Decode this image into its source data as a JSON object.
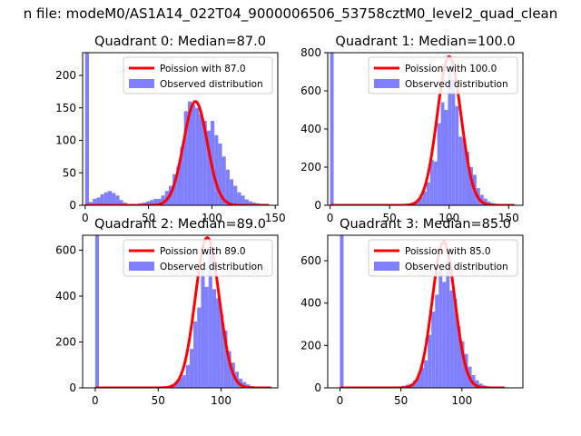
{
  "page_title": "n file: modeM0/AS1A14_022T04_9000006506_53758cztM0_level2_quad_clean",
  "colors": {
    "poisson": "#ff0000",
    "hist": "#8080ff",
    "axis": "#000000"
  },
  "chart_data": [
    {
      "type": "bar",
      "title": "Quadrant 0: Median=87.0",
      "xlim": [
        -2,
        152
      ],
      "ylim": [
        0,
        235
      ],
      "xticks": [
        0,
        50,
        100,
        150
      ],
      "yticks": [
        0,
        50,
        100,
        150,
        200
      ],
      "legend": [
        "Poission with 87.0",
        "Observed distribution"
      ],
      "legend_position": "top-right",
      "bins": [
        {
          "x": 0,
          "w": 3,
          "v": 235
        },
        {
          "x": 3,
          "w": 3,
          "v": 5
        },
        {
          "x": 6,
          "w": 3,
          "v": 10
        },
        {
          "x": 9,
          "w": 3,
          "v": 12
        },
        {
          "x": 12,
          "w": 3,
          "v": 17
        },
        {
          "x": 15,
          "w": 3,
          "v": 20
        },
        {
          "x": 18,
          "w": 3,
          "v": 22
        },
        {
          "x": 21,
          "w": 3,
          "v": 19
        },
        {
          "x": 24,
          "w": 3,
          "v": 15
        },
        {
          "x": 27,
          "w": 3,
          "v": 8
        },
        {
          "x": 30,
          "w": 3,
          "v": 4
        },
        {
          "x": 33,
          "w": 3,
          "v": 2
        },
        {
          "x": 36,
          "w": 3,
          "v": 2
        },
        {
          "x": 39,
          "w": 3,
          "v": 2
        },
        {
          "x": 42,
          "w": 3,
          "v": 3
        },
        {
          "x": 45,
          "w": 3,
          "v": 4
        },
        {
          "x": 48,
          "w": 3,
          "v": 6
        },
        {
          "x": 51,
          "w": 3,
          "v": 8
        },
        {
          "x": 54,
          "w": 3,
          "v": 10
        },
        {
          "x": 57,
          "w": 3,
          "v": 10
        },
        {
          "x": 60,
          "w": 3,
          "v": 15
        },
        {
          "x": 63,
          "w": 3,
          "v": 22
        },
        {
          "x": 66,
          "w": 3,
          "v": 30
        },
        {
          "x": 69,
          "w": 3,
          "v": 48
        },
        {
          "x": 72,
          "w": 3,
          "v": 60
        },
        {
          "x": 75,
          "w": 3,
          "v": 90
        },
        {
          "x": 78,
          "w": 3,
          "v": 145
        },
        {
          "x": 81,
          "w": 3,
          "v": 160
        },
        {
          "x": 84,
          "w": 3,
          "v": 155
        },
        {
          "x": 87,
          "w": 3,
          "v": 150
        },
        {
          "x": 90,
          "w": 3,
          "v": 140
        },
        {
          "x": 93,
          "w": 3,
          "v": 130
        },
        {
          "x": 96,
          "w": 3,
          "v": 115
        },
        {
          "x": 99,
          "w": 3,
          "v": 130
        },
        {
          "x": 102,
          "w": 3,
          "v": 108
        },
        {
          "x": 105,
          "w": 3,
          "v": 95
        },
        {
          "x": 108,
          "w": 3,
          "v": 75
        },
        {
          "x": 111,
          "w": 3,
          "v": 55
        },
        {
          "x": 114,
          "w": 3,
          "v": 40
        },
        {
          "x": 117,
          "w": 3,
          "v": 30
        },
        {
          "x": 120,
          "w": 3,
          "v": 20
        },
        {
          "x": 123,
          "w": 3,
          "v": 15
        },
        {
          "x": 126,
          "w": 3,
          "v": 9
        },
        {
          "x": 129,
          "w": 3,
          "v": 6
        },
        {
          "x": 132,
          "w": 3,
          "v": 4
        },
        {
          "x": 135,
          "w": 3,
          "v": 3
        },
        {
          "x": 138,
          "w": 3,
          "v": 2
        },
        {
          "x": 141,
          "w": 3,
          "v": 2
        }
      ],
      "poisson": {
        "lambda": 87.0,
        "peak": 160,
        "x_range": [
          0,
          145
        ]
      }
    },
    {
      "type": "bar",
      "title": "Quadrant 1: Median=100.0",
      "xlim": [
        -2,
        162
      ],
      "ylim": [
        0,
        800
      ],
      "xticks": [
        0,
        50,
        100,
        150
      ],
      "yticks": [
        0,
        200,
        400,
        600,
        800
      ],
      "legend": [
        "Poission with 100.0",
        "Observed distribution"
      ],
      "legend_position": "top-right",
      "bins": [
        {
          "x": 0,
          "w": 3,
          "v": 800
        },
        {
          "x": 54,
          "w": 3,
          "v": 2
        },
        {
          "x": 57,
          "w": 3,
          "v": 2
        },
        {
          "x": 60,
          "w": 3,
          "v": 3
        },
        {
          "x": 63,
          "w": 3,
          "v": 5
        },
        {
          "x": 66,
          "w": 3,
          "v": 8
        },
        {
          "x": 69,
          "w": 3,
          "v": 15
        },
        {
          "x": 72,
          "w": 3,
          "v": 25
        },
        {
          "x": 75,
          "w": 3,
          "v": 45
        },
        {
          "x": 78,
          "w": 3,
          "v": 75
        },
        {
          "x": 81,
          "w": 3,
          "v": 120
        },
        {
          "x": 84,
          "w": 3,
          "v": 240
        },
        {
          "x": 87,
          "w": 3,
          "v": 230
        },
        {
          "x": 90,
          "w": 3,
          "v": 430
        },
        {
          "x": 93,
          "w": 3,
          "v": 540
        },
        {
          "x": 96,
          "w": 3,
          "v": 500
        },
        {
          "x": 99,
          "w": 3,
          "v": 700
        },
        {
          "x": 102,
          "w": 3,
          "v": 660
        },
        {
          "x": 105,
          "w": 3,
          "v": 520
        },
        {
          "x": 108,
          "w": 3,
          "v": 360
        },
        {
          "x": 111,
          "w": 3,
          "v": 350
        },
        {
          "x": 114,
          "w": 3,
          "v": 280
        },
        {
          "x": 117,
          "w": 3,
          "v": 200
        },
        {
          "x": 120,
          "w": 3,
          "v": 160
        },
        {
          "x": 123,
          "w": 3,
          "v": 90
        },
        {
          "x": 126,
          "w": 3,
          "v": 55
        },
        {
          "x": 129,
          "w": 3,
          "v": 35
        },
        {
          "x": 132,
          "w": 3,
          "v": 20
        },
        {
          "x": 135,
          "w": 3,
          "v": 12
        },
        {
          "x": 138,
          "w": 3,
          "v": 8
        },
        {
          "x": 141,
          "w": 3,
          "v": 5
        }
      ],
      "poisson": {
        "lambda": 100.0,
        "peak": 780,
        "x_range": [
          0,
          155
        ]
      }
    },
    {
      "type": "bar",
      "title": "Quadrant 2: Median=89.0",
      "xlim": [
        -10,
        145
      ],
      "ylim": [
        0,
        665
      ],
      "xticks": [
        0,
        50,
        100
      ],
      "yticks": [
        0,
        200,
        400,
        600
      ],
      "legend": [
        "Poission with 89.0",
        "Observed distribution"
      ],
      "legend_position": "top-right",
      "bins": [
        {
          "x": 0,
          "w": 3,
          "v": 665
        },
        {
          "x": 45,
          "w": 3,
          "v": 2
        },
        {
          "x": 48,
          "w": 3,
          "v": 3
        },
        {
          "x": 51,
          "w": 3,
          "v": 4
        },
        {
          "x": 54,
          "w": 3,
          "v": 5
        },
        {
          "x": 57,
          "w": 3,
          "v": 8
        },
        {
          "x": 60,
          "w": 3,
          "v": 15
        },
        {
          "x": 63,
          "w": 3,
          "v": 25
        },
        {
          "x": 66,
          "w": 3,
          "v": 45
        },
        {
          "x": 69,
          "w": 3,
          "v": 55
        },
        {
          "x": 72,
          "w": 3,
          "v": 100
        },
        {
          "x": 75,
          "w": 3,
          "v": 170
        },
        {
          "x": 78,
          "w": 3,
          "v": 290
        },
        {
          "x": 81,
          "w": 3,
          "v": 350
        },
        {
          "x": 84,
          "w": 3,
          "v": 520
        },
        {
          "x": 87,
          "w": 3,
          "v": 440
        },
        {
          "x": 90,
          "w": 3,
          "v": 600
        },
        {
          "x": 93,
          "w": 3,
          "v": 430
        },
        {
          "x": 96,
          "w": 3,
          "v": 390
        },
        {
          "x": 99,
          "w": 3,
          "v": 320
        },
        {
          "x": 102,
          "w": 3,
          "v": 250
        },
        {
          "x": 105,
          "w": 3,
          "v": 160
        },
        {
          "x": 108,
          "w": 3,
          "v": 110
        },
        {
          "x": 111,
          "w": 3,
          "v": 70
        },
        {
          "x": 114,
          "w": 3,
          "v": 40
        },
        {
          "x": 117,
          "w": 3,
          "v": 25
        },
        {
          "x": 120,
          "w": 3,
          "v": 15
        },
        {
          "x": 123,
          "w": 3,
          "v": 8
        },
        {
          "x": 126,
          "w": 3,
          "v": 5
        }
      ],
      "poisson": {
        "lambda": 89.0,
        "peak": 655,
        "x_range": [
          0,
          140
        ]
      }
    },
    {
      "type": "bar",
      "title": "Quadrant 3: Median=85.0",
      "xlim": [
        -10,
        150
      ],
      "ylim": [
        0,
        720
      ],
      "xticks": [
        0,
        50,
        100
      ],
      "yticks": [
        0,
        200,
        400,
        600
      ],
      "legend": [
        "Poission with 85.0",
        "Observed distribution"
      ],
      "legend_position": "top-right",
      "bins": [
        {
          "x": 0,
          "w": 3,
          "v": 720
        },
        {
          "x": 42,
          "w": 3,
          "v": 2
        },
        {
          "x": 45,
          "w": 3,
          "v": 4
        },
        {
          "x": 48,
          "w": 3,
          "v": 6
        },
        {
          "x": 51,
          "w": 3,
          "v": 10
        },
        {
          "x": 54,
          "w": 3,
          "v": 15
        },
        {
          "x": 57,
          "w": 3,
          "v": 20
        },
        {
          "x": 60,
          "w": 3,
          "v": 35
        },
        {
          "x": 63,
          "w": 3,
          "v": 55
        },
        {
          "x": 66,
          "w": 3,
          "v": 95
        },
        {
          "x": 69,
          "w": 3,
          "v": 130
        },
        {
          "x": 72,
          "w": 3,
          "v": 250
        },
        {
          "x": 75,
          "w": 3,
          "v": 360
        },
        {
          "x": 78,
          "w": 3,
          "v": 440
        },
        {
          "x": 81,
          "w": 3,
          "v": 560
        },
        {
          "x": 84,
          "w": 3,
          "v": 500
        },
        {
          "x": 87,
          "w": 3,
          "v": 600
        },
        {
          "x": 90,
          "w": 3,
          "v": 460
        },
        {
          "x": 93,
          "w": 3,
          "v": 420
        },
        {
          "x": 96,
          "w": 3,
          "v": 290
        },
        {
          "x": 99,
          "w": 3,
          "v": 220
        },
        {
          "x": 102,
          "w": 3,
          "v": 160
        },
        {
          "x": 105,
          "w": 3,
          "v": 100
        },
        {
          "x": 108,
          "w": 3,
          "v": 60
        },
        {
          "x": 111,
          "w": 3,
          "v": 35
        },
        {
          "x": 114,
          "w": 3,
          "v": 20
        },
        {
          "x": 117,
          "w": 3,
          "v": 12
        },
        {
          "x": 120,
          "w": 3,
          "v": 8
        },
        {
          "x": 123,
          "w": 3,
          "v": 5
        }
      ],
      "poisson": {
        "lambda": 85.0,
        "peak": 690,
        "x_range": [
          0,
          135
        ]
      }
    }
  ]
}
